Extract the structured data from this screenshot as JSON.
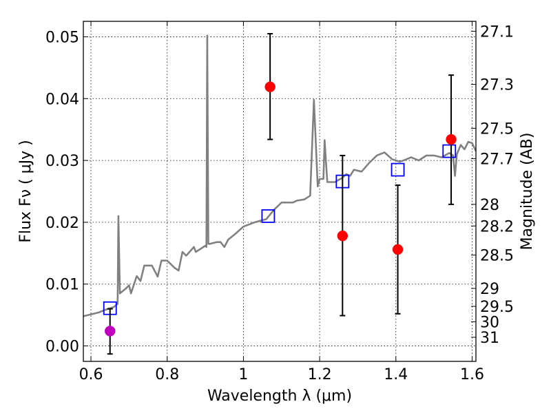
{
  "chart_data": {
    "type": "scatter",
    "xlabel": "Wavelength  λ (μm)",
    "ylabel": "Flux  Fν ( μJy )",
    "y2label": "Magnitude (AB)",
    "xlim": [
      0.58,
      1.61
    ],
    "ylim": [
      -0.0025,
      0.0525
    ],
    "grid": true,
    "x_ticks": [
      0.6,
      0.8,
      1.0,
      1.2,
      1.4,
      1.6
    ],
    "x_tick_labels": [
      "0.6",
      "0.8",
      "1",
      "1.2",
      "1.4",
      "1.6"
    ],
    "y_ticks": [
      0.0,
      0.01,
      0.02,
      0.03,
      0.04,
      0.05
    ],
    "y_tick_labels": [
      "0.00",
      "0.01",
      "0.02",
      "0.03",
      "0.04",
      "0.05"
    ],
    "y2_ticks": [
      {
        "label": "27.1",
        "flux": 0.0509
      },
      {
        "label": "27.3",
        "flux": 0.0423
      },
      {
        "label": "27.5",
        "flux": 0.0352
      },
      {
        "label": "27.7",
        "flux": 0.0303
      },
      {
        "label": "28",
        "flux": 0.0229
      },
      {
        "label": "28.2",
        "flux": 0.0194
      },
      {
        "label": "28.5",
        "flux": 0.0147
      },
      {
        "label": "29",
        "flux": 0.0093
      },
      {
        "label": "29.5",
        "flux": 0.0064
      },
      {
        "label": "30",
        "flux": 0.0039
      },
      {
        "label": "31",
        "flux": 0.0014
      }
    ],
    "series": [
      {
        "kind": "line",
        "color": "#808080",
        "points": [
          [
            0.58,
            0.0048
          ],
          [
            0.6,
            0.0051
          ],
          [
            0.62,
            0.0054
          ],
          [
            0.64,
            0.0059
          ],
          [
            0.66,
            0.0063
          ],
          [
            0.67,
            0.0068
          ],
          [
            0.672,
            0.021
          ],
          [
            0.676,
            0.0085
          ],
          [
            0.69,
            0.0092
          ],
          [
            0.7,
            0.0098
          ],
          [
            0.705,
            0.0085
          ],
          [
            0.72,
            0.0113
          ],
          [
            0.73,
            0.0105
          ],
          [
            0.74,
            0.013
          ],
          [
            0.76,
            0.013
          ],
          [
            0.775,
            0.0112
          ],
          [
            0.785,
            0.0138
          ],
          [
            0.8,
            0.0138
          ],
          [
            0.82,
            0.0126
          ],
          [
            0.83,
            0.0122
          ],
          [
            0.84,
            0.0152
          ],
          [
            0.85,
            0.0146
          ],
          [
            0.87,
            0.016
          ],
          [
            0.875,
            0.0152
          ],
          [
            0.89,
            0.0158
          ],
          [
            0.9,
            0.0162
          ],
          [
            0.903,
            0.016
          ],
          [
            0.905,
            0.0502
          ],
          [
            0.908,
            0.0165
          ],
          [
            0.912,
            0.0165
          ],
          [
            0.93,
            0.0168
          ],
          [
            0.94,
            0.0168
          ],
          [
            0.95,
            0.016
          ],
          [
            0.96,
            0.0172
          ],
          [
            0.98,
            0.0182
          ],
          [
            1.0,
            0.0193
          ],
          [
            1.03,
            0.02
          ],
          [
            1.06,
            0.0205
          ],
          [
            1.08,
            0.022
          ],
          [
            1.1,
            0.0232
          ],
          [
            1.13,
            0.0232
          ],
          [
            1.14,
            0.0235
          ],
          [
            1.16,
            0.0237
          ],
          [
            1.175,
            0.0243
          ],
          [
            1.185,
            0.0398
          ],
          [
            1.195,
            0.0258
          ],
          [
            1.2,
            0.027
          ],
          [
            1.21,
            0.027
          ],
          [
            1.213,
            0.0333
          ],
          [
            1.22,
            0.0265
          ],
          [
            1.24,
            0.0265
          ],
          [
            1.26,
            0.0272
          ],
          [
            1.27,
            0.0278
          ],
          [
            1.28,
            0.0275
          ],
          [
            1.29,
            0.0285
          ],
          [
            1.31,
            0.0282
          ],
          [
            1.33,
            0.0296
          ],
          [
            1.35,
            0.0308
          ],
          [
            1.37,
            0.0313
          ],
          [
            1.39,
            0.0302
          ],
          [
            1.41,
            0.0298
          ],
          [
            1.42,
            0.03
          ],
          [
            1.44,
            0.0305
          ],
          [
            1.46,
            0.03
          ],
          [
            1.48,
            0.0308
          ],
          [
            1.5,
            0.0308
          ],
          [
            1.52,
            0.0305
          ],
          [
            1.54,
            0.0312
          ],
          [
            1.55,
            0.0308
          ],
          [
            1.555,
            0.0275
          ],
          [
            1.56,
            0.031
          ],
          [
            1.57,
            0.0325
          ],
          [
            1.58,
            0.0318
          ],
          [
            1.59,
            0.033
          ],
          [
            1.6,
            0.0328
          ],
          [
            1.61,
            0.0315
          ]
        ]
      },
      {
        "kind": "squares",
        "color": "#0000ff",
        "x": [
          0.65,
          1.065,
          1.26,
          1.405,
          1.54
        ],
        "y": [
          0.0061,
          0.021,
          0.0266,
          0.0285,
          0.0315
        ]
      },
      {
        "kind": "errorbar",
        "color": "#ff0000",
        "bar_color": "#000000",
        "x": [
          1.07,
          1.26,
          1.405,
          1.545
        ],
        "y": [
          0.0419,
          0.0178,
          0.0156,
          0.0334
        ],
        "yerr_low": [
          0.0334,
          0.0049,
          0.0052,
          0.0229
        ],
        "yerr_high": [
          0.0505,
          0.0308,
          0.026,
          0.0438
        ]
      },
      {
        "kind": "errorbar",
        "color": "#bf00bf",
        "bar_color": "#000000",
        "x": [
          0.65
        ],
        "y": [
          0.0024
        ],
        "yerr_low": [
          -0.0013
        ],
        "yerr_high": [
          0.006
        ]
      }
    ]
  }
}
